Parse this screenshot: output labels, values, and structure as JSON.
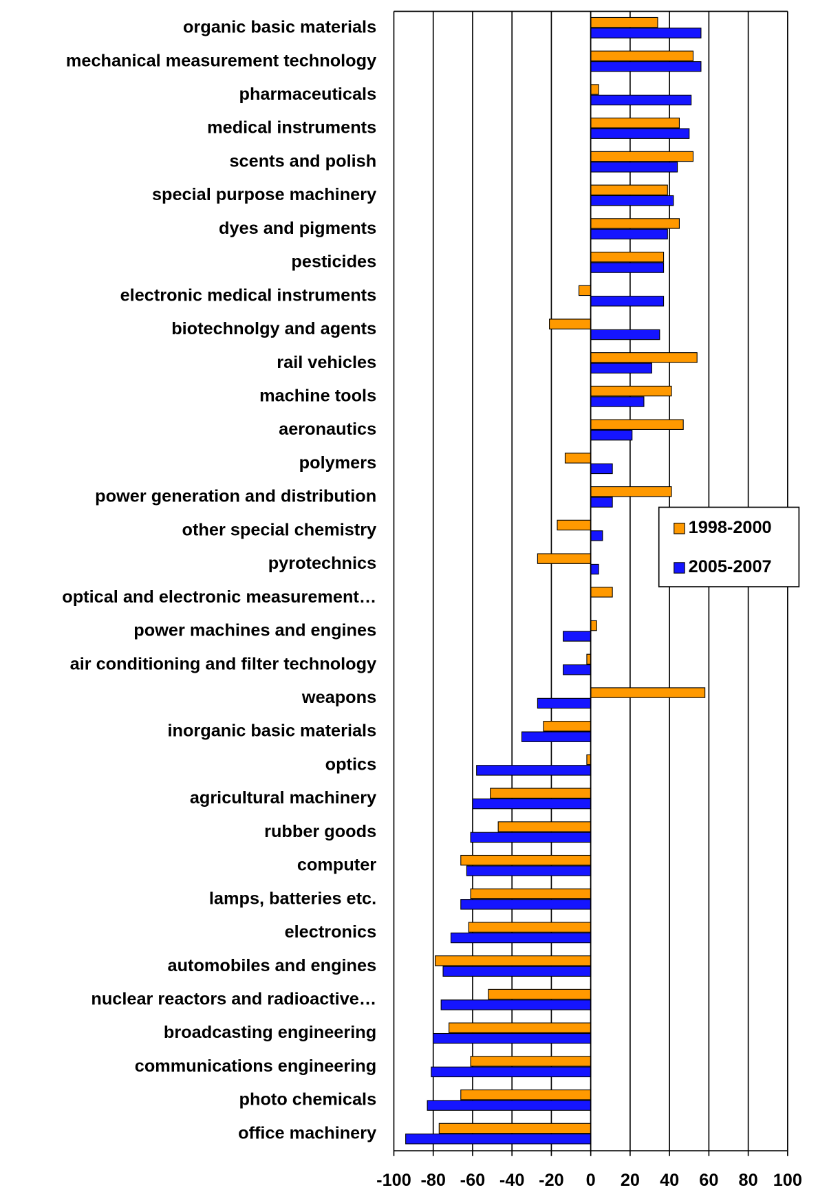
{
  "chart_data": {
    "type": "hbar",
    "categories": [
      "organic basic materials",
      "mechanical measurement technology",
      "pharmaceuticals",
      "medical instruments",
      "scents and polish",
      "special purpose machinery",
      "dyes and pigments",
      "pesticides",
      "electronic medical instruments",
      "biotechnolgy and agents",
      "rail vehicles",
      "machine tools",
      "aeronautics",
      "polymers",
      "power generation and distribution",
      "other special chemistry",
      "pyrotechnics",
      "optical and electronic measurement…",
      "power machines and engines",
      "air conditioning and filter technology",
      "weapons",
      "inorganic basic materials",
      "optics",
      "agricultural machinery",
      "rubber goods",
      "computer",
      "lamps, batteries etc.",
      "electronics",
      "automobiles and engines",
      "nuclear reactors and radioactive…",
      "broadcasting engineering",
      "communications engineering",
      "photo chemicals",
      "office machinery"
    ],
    "series": [
      {
        "name": "1998-2000",
        "color": "#FF9900",
        "values": [
          34,
          52,
          4,
          45,
          52,
          39,
          45,
          37,
          -6,
          -21,
          54,
          41,
          47,
          -13,
          41,
          -17,
          -27,
          11,
          3,
          -2,
          58,
          -24,
          -2,
          -51,
          -47,
          -66,
          -61,
          -62,
          -79,
          -52,
          -72,
          -61,
          -66,
          -77
        ]
      },
      {
        "name": "2005-2007",
        "color": "#1515FF",
        "values": [
          56,
          56,
          51,
          50,
          44,
          42,
          39,
          37,
          37,
          35,
          31,
          27,
          21,
          11,
          11,
          6,
          4,
          0,
          -14,
          -14,
          -27,
          -35,
          -58,
          -60,
          -61,
          -63,
          -66,
          -71,
          -75,
          -76,
          -80,
          -81,
          -83,
          -94
        ]
      }
    ],
    "xlim": [
      -100,
      100
    ],
    "xticks": [
      -100,
      -80,
      -60,
      -40,
      -20,
      0,
      20,
      40,
      60,
      80,
      100
    ],
    "grid": true
  }
}
